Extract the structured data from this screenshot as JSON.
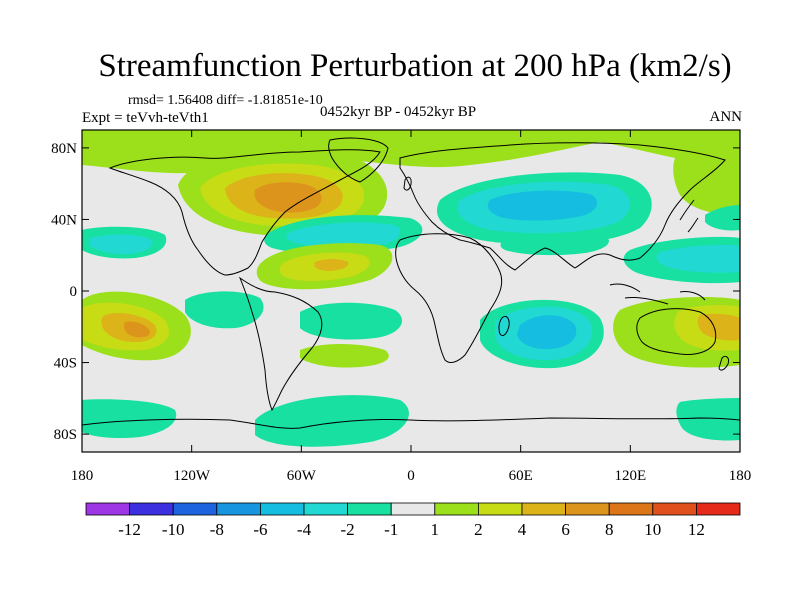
{
  "header": {
    "title": "Streamfunction Perturbation at 200 hPa (km2/s)",
    "stats": "rmsd= 1.56408 diff= -1.81851e-10",
    "experiment": "Expt = teVvh-teVth1",
    "period": "0452kyr BP - 0452kyr BP",
    "season": "ANN"
  },
  "map": {
    "projection": "cylindrical-equidistant",
    "lon_range": [
      -180,
      180
    ],
    "lat_range": [
      -90,
      90
    ],
    "background_color": "#e8e8e8",
    "lat_ticks": [
      {
        "value": 80,
        "label": "80N"
      },
      {
        "value": 40,
        "label": "40N"
      },
      {
        "value": 0,
        "label": "0"
      },
      {
        "value": -40,
        "label": "40S"
      },
      {
        "value": -80,
        "label": "80S"
      }
    ],
    "lon_ticks": [
      {
        "value": -180,
        "label": "180"
      },
      {
        "value": -120,
        "label": "120W"
      },
      {
        "value": -60,
        "label": "60W"
      },
      {
        "value": 0,
        "label": "0"
      },
      {
        "value": 60,
        "label": "60E"
      },
      {
        "value": 120,
        "label": "120E"
      },
      {
        "value": 180,
        "label": "180"
      }
    ]
  },
  "colorbar": {
    "colors": [
      "#9f36e6",
      "#3c2fe0",
      "#1d63e0",
      "#1796df",
      "#15bde0",
      "#22d8d2",
      "#17e0a0",
      "#e8e8e8",
      "#9be01a",
      "#c8dc16",
      "#dcb41a",
      "#dc941c",
      "#dc7418",
      "#e0501c",
      "#e62a1a"
    ],
    "labels": [
      "-12",
      "-10",
      "-8",
      "-6",
      "-4",
      "-2",
      "-1",
      "1",
      "2",
      "4",
      "6",
      "8",
      "10",
      "12"
    ]
  }
}
